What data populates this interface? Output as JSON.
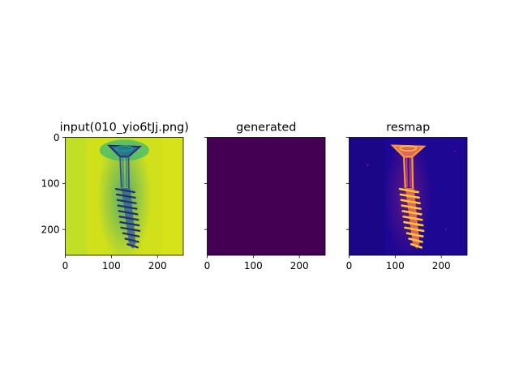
{
  "figure": {
    "background": "#ffffff"
  },
  "chart_data": [
    {
      "type": "heatmap",
      "title": "input(010_yio6tJj.png)",
      "image_kind": "input",
      "colormap": "viridis",
      "content": "x-ray image of a countersunk screw, head at top, threads on lower shaft, on a bright yellow-green background",
      "xlim": [
        0,
        256
      ],
      "ylim": [
        256,
        0
      ],
      "xticks": [
        0,
        100,
        200
      ],
      "yticks": [
        0,
        100,
        200
      ],
      "show_yticklabels": true
    },
    {
      "type": "heatmap",
      "title": "generated",
      "image_kind": "uniform",
      "colormap": "viridis",
      "fill_color": "#440154",
      "xlim": [
        0,
        256
      ],
      "ylim": [
        256,
        0
      ],
      "xticks": [
        0,
        100,
        200
      ],
      "yticks": [
        0,
        100,
        200
      ],
      "show_yticklabels": false
    },
    {
      "type": "heatmap",
      "title": "resmap",
      "image_kind": "residual",
      "colormap": "plasma",
      "content": "bright orange-yellow screw outline on dark blue background",
      "xlim": [
        0,
        256
      ],
      "ylim": [
        256,
        0
      ],
      "xticks": [
        0,
        100,
        200
      ],
      "yticks": [
        0,
        100,
        200
      ],
      "show_yticklabels": false
    }
  ]
}
